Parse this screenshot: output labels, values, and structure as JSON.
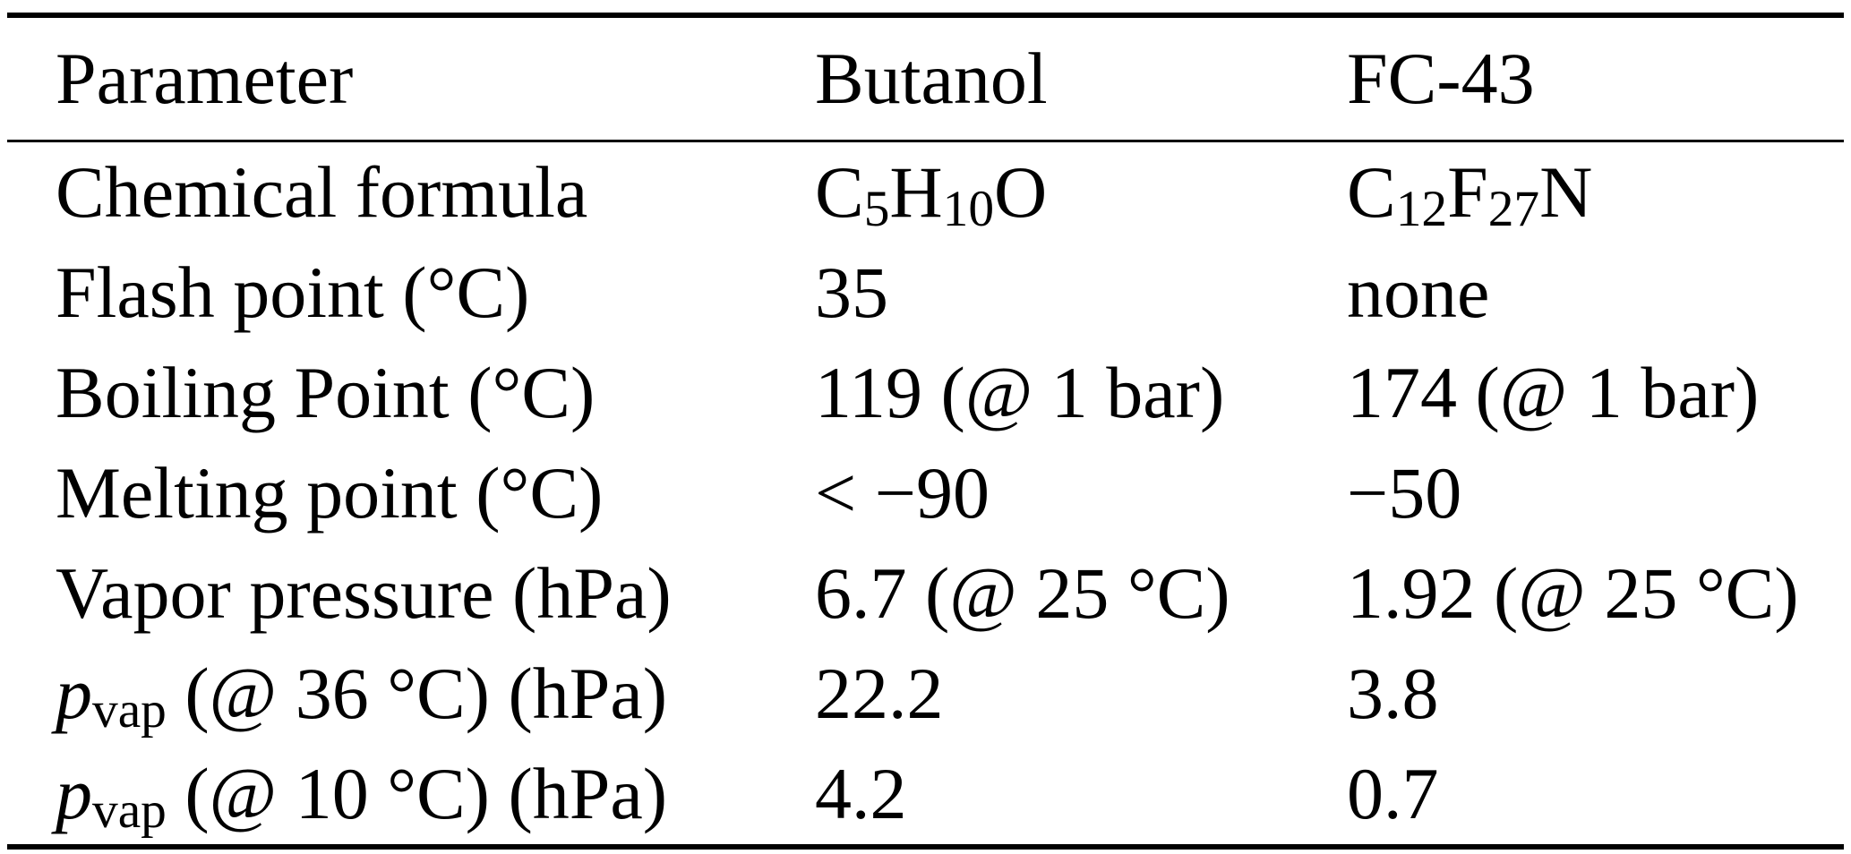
{
  "colors": {
    "background": "#ffffff",
    "text": "#000000",
    "rule": "#000000"
  },
  "table": {
    "columns": [
      "Parameter",
      "Butanol",
      "FC-43"
    ],
    "rows": [
      {
        "cells": [
          [
            {
              "t": "Chemical formula"
            }
          ],
          [
            {
              "t": "C"
            },
            {
              "t": "5",
              "sub": true
            },
            {
              "t": "H"
            },
            {
              "t": "10",
              "sub": true
            },
            {
              "t": "O"
            }
          ],
          [
            {
              "t": "C"
            },
            {
              "t": "12",
              "sub": true
            },
            {
              "t": "F"
            },
            {
              "t": "27",
              "sub": true
            },
            {
              "t": "N"
            }
          ]
        ]
      },
      {
        "cells": [
          [
            {
              "t": "Flash point (°C)"
            }
          ],
          [
            {
              "t": "35"
            }
          ],
          [
            {
              "t": "none"
            }
          ]
        ]
      },
      {
        "cells": [
          [
            {
              "t": "Boiling Point (°C)"
            }
          ],
          [
            {
              "t": "119 (@ 1 bar)"
            }
          ],
          [
            {
              "t": "174 (@ 1 bar)"
            }
          ]
        ]
      },
      {
        "cells": [
          [
            {
              "t": "Melting point (°C)"
            }
          ],
          [
            {
              "t": "< −90"
            }
          ],
          [
            {
              "t": "−50"
            }
          ]
        ]
      },
      {
        "cells": [
          [
            {
              "t": "Vapor pressure (hPa)"
            }
          ],
          [
            {
              "t": "6.7 (@ 25 °C)"
            }
          ],
          [
            {
              "t": "1.92 (@ 25 °C)"
            }
          ]
        ]
      },
      {
        "cells": [
          [
            {
              "t": "p",
              "italic": true
            },
            {
              "t": "vap",
              "sub": true
            },
            {
              "t": " (@ 36 °C) (hPa)"
            }
          ],
          [
            {
              "t": "22.2"
            }
          ],
          [
            {
              "t": "3.8"
            }
          ]
        ]
      },
      {
        "cells": [
          [
            {
              "t": "p",
              "italic": true
            },
            {
              "t": "vap",
              "sub": true
            },
            {
              "t": " (@ 10 °C) (hPa)"
            }
          ],
          [
            {
              "t": "4.2"
            }
          ],
          [
            {
              "t": "0.7"
            }
          ]
        ]
      }
    ]
  },
  "chart_data": {
    "type": "table",
    "columns": [
      "Parameter",
      "Butanol",
      "FC-43"
    ],
    "rows": [
      [
        "Chemical formula",
        "C₅H₁₀O",
        "C₁₂F₂₇N"
      ],
      [
        "Flash point (°C)",
        "35",
        "none"
      ],
      [
        "Boiling Point (°C)",
        "119 (@ 1 bar)",
        "174 (@ 1 bar)"
      ],
      [
        "Melting point (°C)",
        "< −90",
        "−50"
      ],
      [
        "Vapor pressure (hPa)",
        "6.7 (@ 25 °C)",
        "1.92 (@ 25 °C)"
      ],
      [
        "pvap (@ 36 °C) (hPa)",
        "22.2",
        "3.8"
      ],
      [
        "pvap (@ 10 °C) (hPa)",
        "4.2",
        "0.7"
      ]
    ]
  }
}
